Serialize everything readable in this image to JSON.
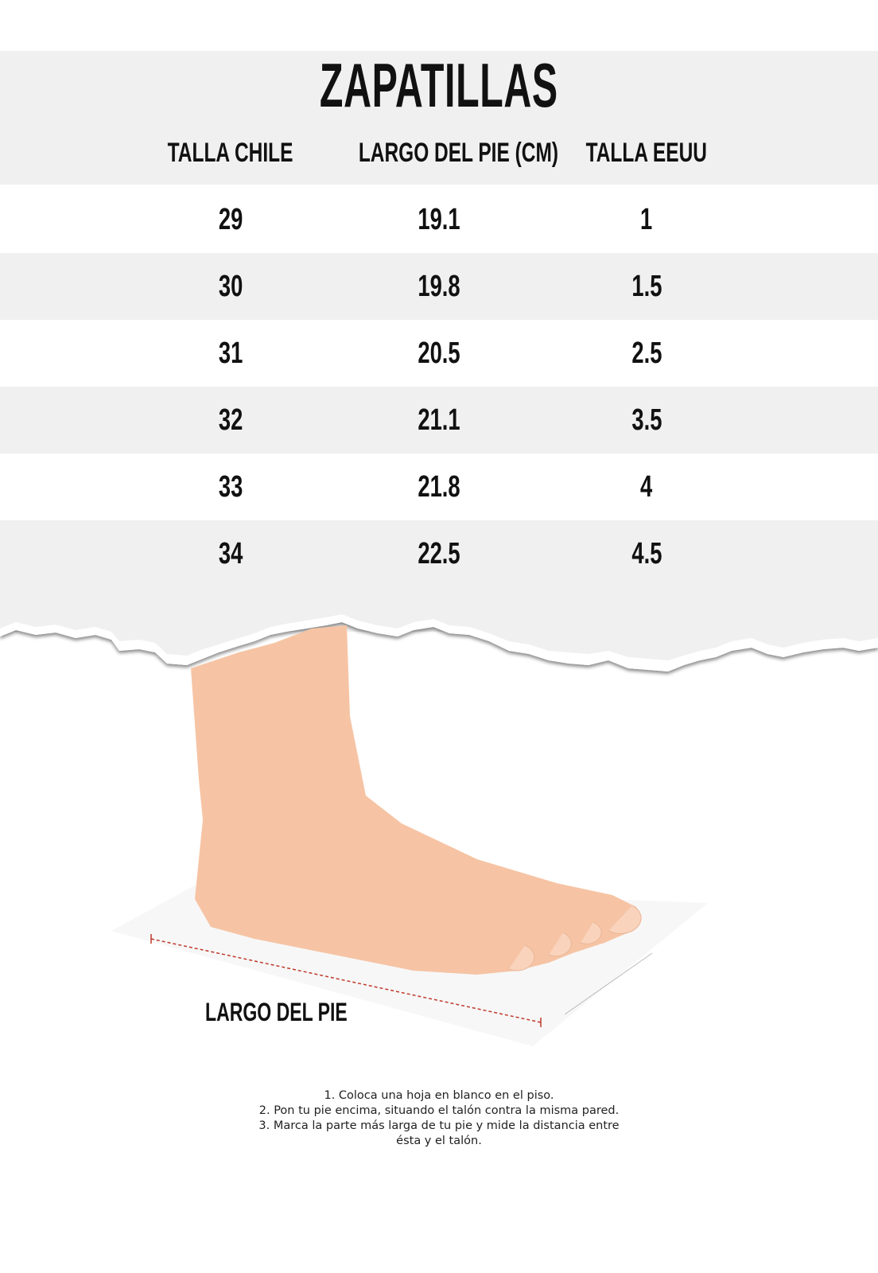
{
  "title": "ZAPATILLAS",
  "table": {
    "headers": [
      "TALLA CHILE",
      "LARGO DEL PIE (CM)",
      "TALLA EEUU"
    ],
    "rows": [
      [
        "29",
        "19.1",
        "1"
      ],
      [
        "30",
        "19.8",
        "1.5"
      ],
      [
        "31",
        "20.5",
        "2.5"
      ],
      [
        "32",
        "21.1",
        "3.5"
      ],
      [
        "33",
        "21.8",
        "4"
      ],
      [
        "34",
        "22.5",
        "4.5"
      ]
    ]
  },
  "illustration": {
    "label": "LARGO DEL PIE",
    "icon": "foot-measuring-photo"
  },
  "instructions": [
    "1. Coloca una hoja en blanco en el piso.",
    "2. Pon tu pie encima, situando el talón contra la misma pared.",
    "3. Marca la parte más larga de tu pie y mide la distancia entre",
    "ésta y el talón."
  ],
  "colors": {
    "band": "#f0f0f0",
    "text": "#111111",
    "skin": "#f6c4a4",
    "measure_line": "#c0392b"
  }
}
